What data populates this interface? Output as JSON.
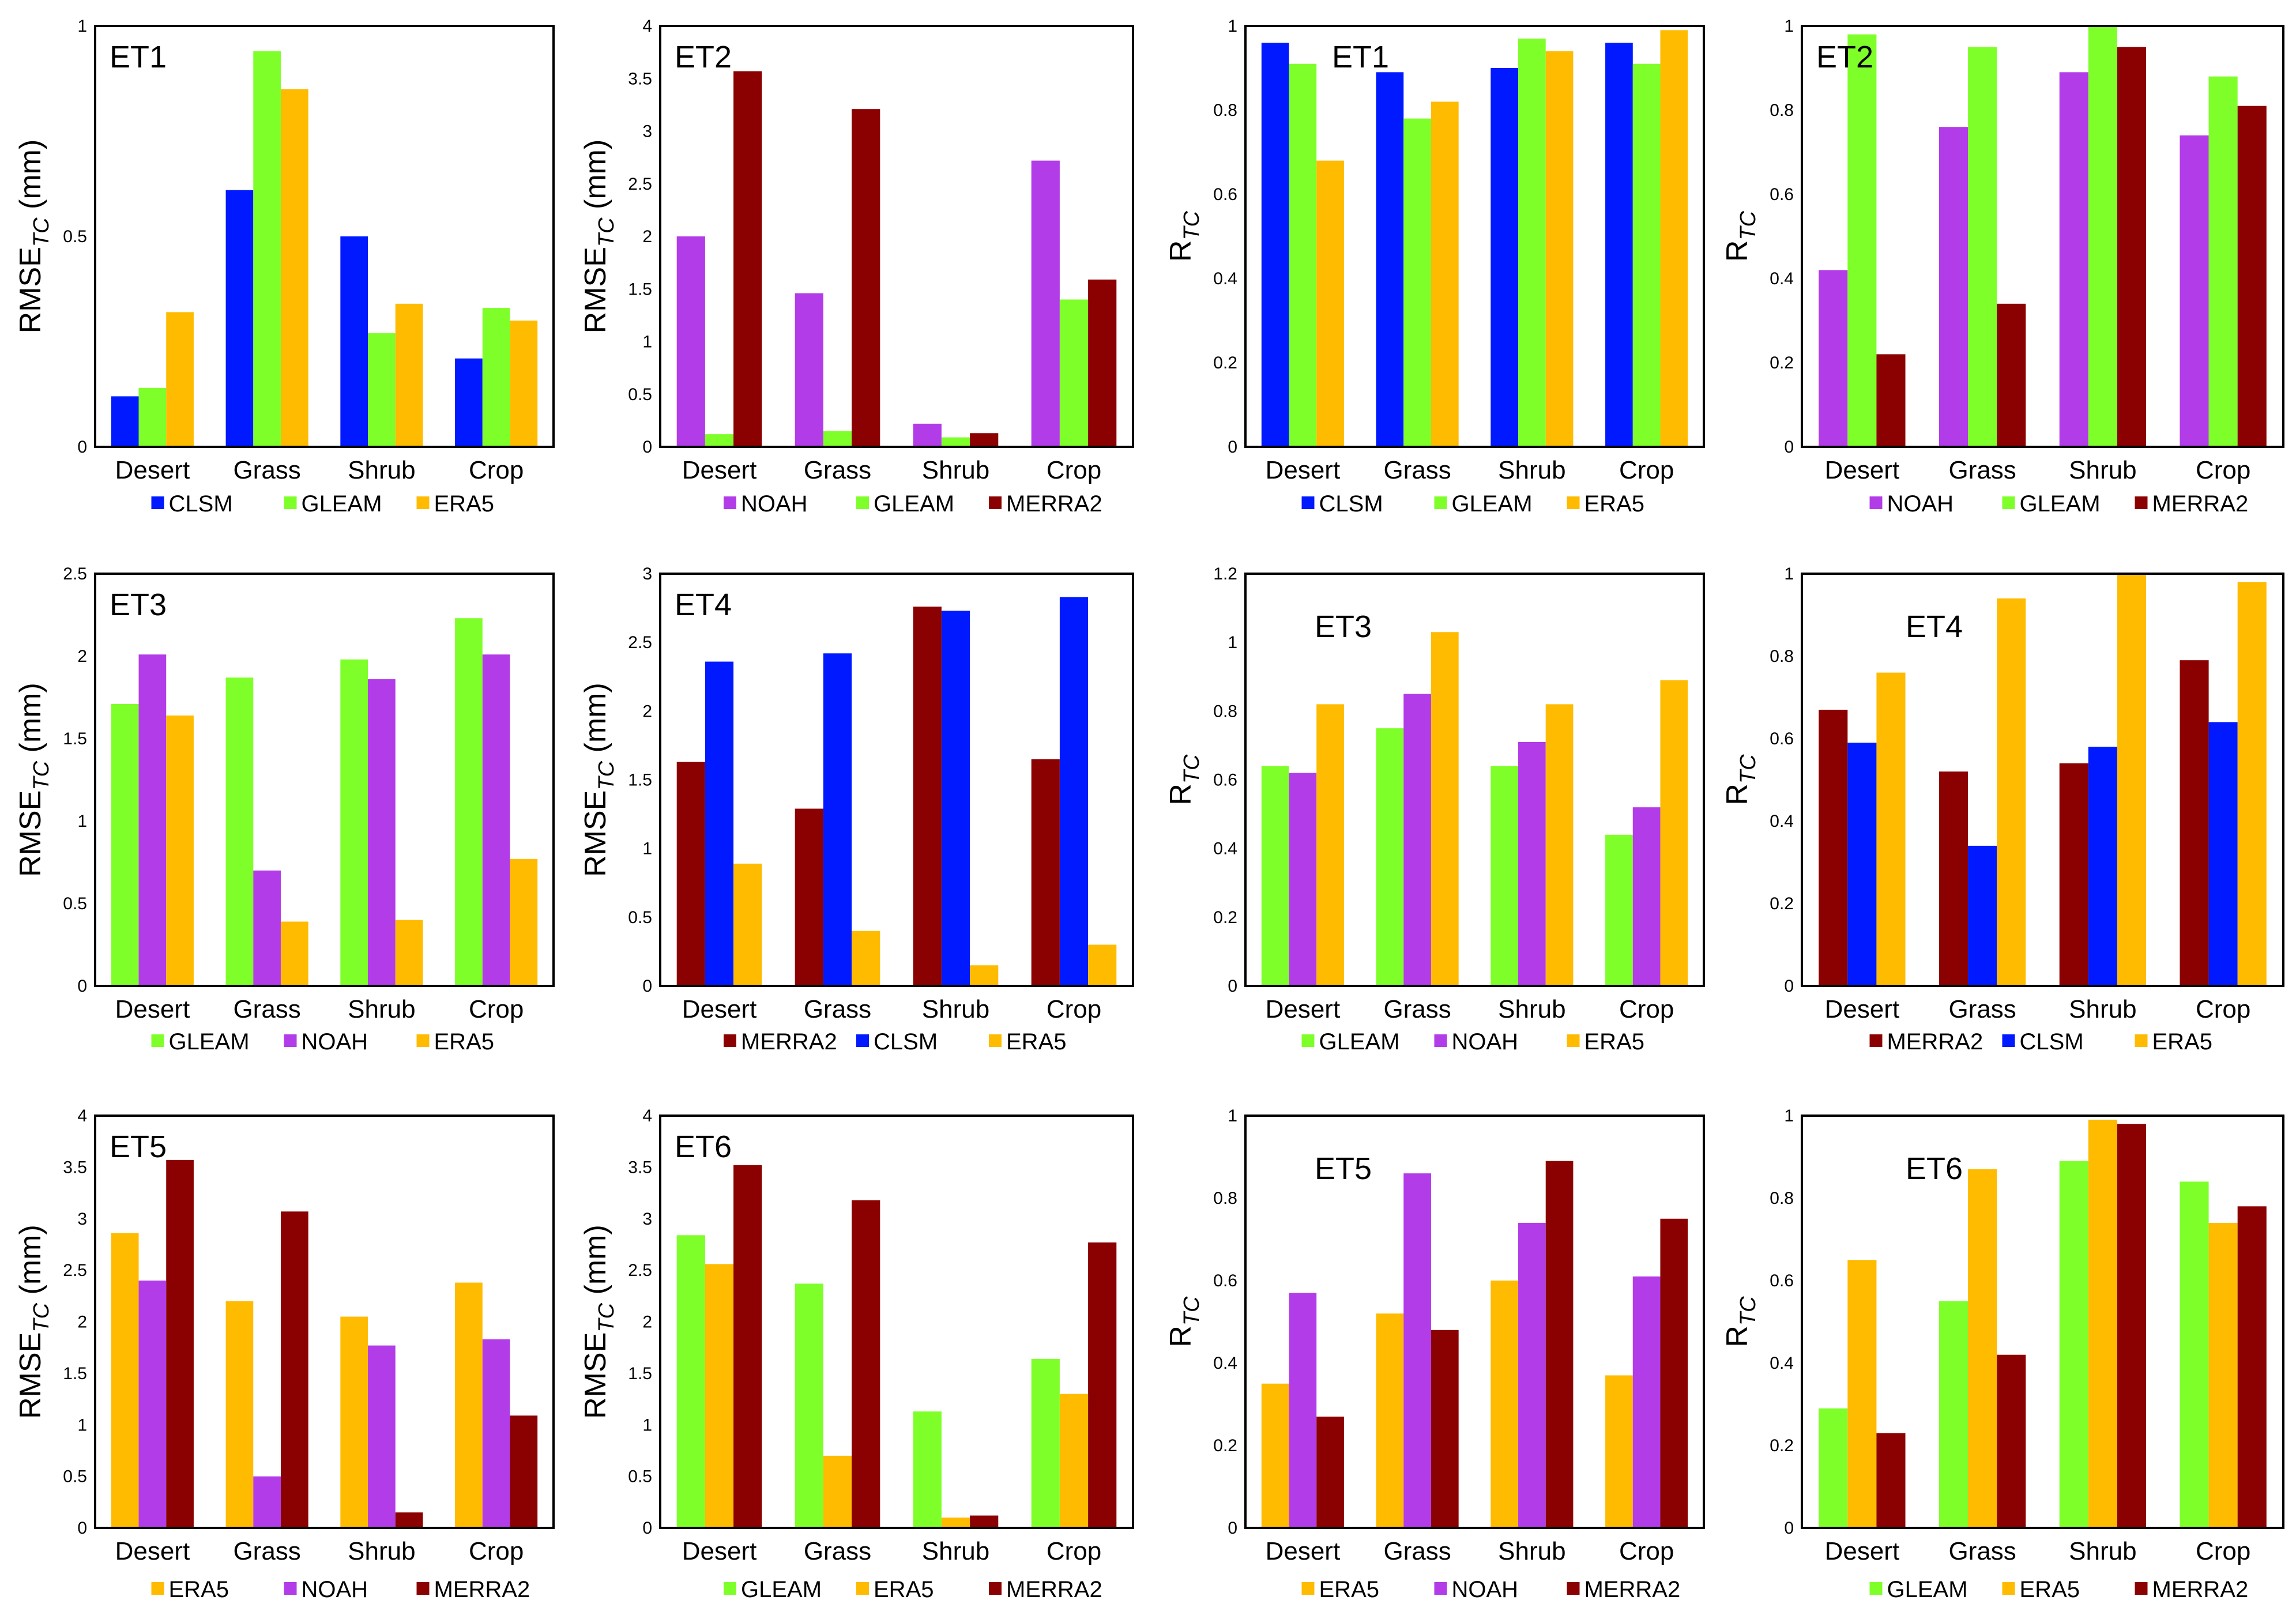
{
  "colors": {
    "CLSM": "#0019ff",
    "GLEAM": "#7fff2a",
    "ERA5": "#ffbb00",
    "NOAH": "#b23ce8",
    "MERRA2": "#8b0000"
  },
  "chart_data": [
    {
      "type": "bar",
      "title": "ET1",
      "ylabel": "RMSE",
      "ylabel_sub": "TC",
      "ylabel_unit": "(mm)",
      "ylim": [
        0,
        1
      ],
      "yticks": [
        "0",
        "0.5",
        "1"
      ],
      "categories": [
        "Desert",
        "Grass",
        "Shrub",
        "Crop"
      ],
      "series": [
        {
          "name": "CLSM",
          "values": [
            0.12,
            0.61,
            0.5,
            0.21
          ]
        },
        {
          "name": "GLEAM",
          "values": [
            0.14,
            0.94,
            0.27,
            0.33
          ]
        },
        {
          "name": "ERA5",
          "values": [
            0.32,
            0.85,
            0.34,
            0.3
          ]
        }
      ]
    },
    {
      "type": "bar",
      "title": "ET2",
      "ylabel": "RMSE",
      "ylabel_sub": "TC",
      "ylabel_unit": "(mm)",
      "ylim": [
        0,
        4
      ],
      "yticks": [
        "0",
        "0.5",
        "1",
        "1.5",
        "2",
        "2.5",
        "3",
        "3.5",
        "4"
      ],
      "categories": [
        "Desert",
        "Grass",
        "Shrub",
        "Crop"
      ],
      "series": [
        {
          "name": "NOAH",
          "values": [
            2.0,
            1.46,
            0.22,
            2.72
          ]
        },
        {
          "name": "GLEAM",
          "values": [
            0.12,
            0.15,
            0.09,
            1.4
          ]
        },
        {
          "name": "MERRA2",
          "values": [
            3.57,
            3.21,
            0.13,
            1.59
          ]
        }
      ]
    },
    {
      "type": "bar",
      "title": "ET1",
      "ylabel": "R",
      "ylabel_sub": "TC",
      "ylabel_unit": "",
      "ylim": [
        0,
        1
      ],
      "yticks": [
        "0",
        "0.2",
        "0.4",
        "0.6",
        "0.8",
        "1"
      ],
      "categories": [
        "Desert",
        "Grass",
        "Shrub",
        "Crop"
      ],
      "series": [
        {
          "name": "CLSM",
          "values": [
            0.96,
            0.89,
            0.9,
            0.96
          ]
        },
        {
          "name": "GLEAM",
          "values": [
            0.91,
            0.78,
            0.97,
            0.91
          ]
        },
        {
          "name": "ERA5",
          "values": [
            0.68,
            0.82,
            0.94,
            0.99
          ]
        }
      ]
    },
    {
      "type": "bar",
      "title": "ET2",
      "ylabel": "R",
      "ylabel_sub": "TC",
      "ylabel_unit": "",
      "ylim": [
        0,
        1
      ],
      "yticks": [
        "0",
        "0.2",
        "0.4",
        "0.6",
        "0.8",
        "1"
      ],
      "categories": [
        "Desert",
        "Grass",
        "Shrub",
        "Crop"
      ],
      "series": [
        {
          "name": "NOAH",
          "values": [
            0.42,
            0.76,
            0.89,
            0.74
          ]
        },
        {
          "name": "GLEAM",
          "values": [
            0.98,
            0.95,
            1.0,
            0.88
          ]
        },
        {
          "name": "MERRA2",
          "values": [
            0.22,
            0.34,
            0.95,
            0.81
          ]
        }
      ]
    },
    {
      "type": "bar",
      "title": "ET3",
      "ylabel": "RMSE",
      "ylabel_sub": "TC",
      "ylabel_unit": "(mm)",
      "ylim": [
        0,
        2.5
      ],
      "yticks": [
        "0",
        "0.5",
        "1",
        "1.5",
        "2",
        "2.5"
      ],
      "categories": [
        "Desert",
        "Grass",
        "Shrub",
        "Crop"
      ],
      "series": [
        {
          "name": "GLEAM",
          "values": [
            1.71,
            1.87,
            1.98,
            2.23
          ]
        },
        {
          "name": "NOAH",
          "values": [
            2.01,
            0.7,
            1.86,
            2.01
          ]
        },
        {
          "name": "ERA5",
          "values": [
            1.64,
            0.39,
            0.4,
            0.77
          ]
        }
      ]
    },
    {
      "type": "bar",
      "title": "ET4",
      "ylabel": "RMSE",
      "ylabel_sub": "TC",
      "ylabel_unit": "(mm)",
      "ylim": [
        0,
        3
      ],
      "yticks": [
        "0",
        "0.5",
        "1",
        "1.5",
        "2",
        "2.5",
        "3"
      ],
      "categories": [
        "Desert",
        "Grass",
        "Shrub",
        "Crop"
      ],
      "series": [
        {
          "name": "MERRA2",
          "values": [
            1.63,
            1.29,
            2.76,
            1.65
          ]
        },
        {
          "name": "CLSM",
          "values": [
            2.36,
            2.42,
            2.73,
            2.83
          ]
        },
        {
          "name": "ERA5",
          "values": [
            0.89,
            0.4,
            0.15,
            0.3
          ]
        }
      ]
    },
    {
      "type": "bar",
      "title": "ET3",
      "ylabel": "R",
      "ylabel_sub": "TC",
      "ylabel_unit": "",
      "ylim": [
        0,
        1.2
      ],
      "yticks": [
        "0",
        "0.2",
        "0.4",
        "0.6",
        "0.8",
        "1",
        "1.2"
      ],
      "categories": [
        "Desert",
        "Grass",
        "Shrub",
        "Crop"
      ],
      "series": [
        {
          "name": "GLEAM",
          "values": [
            0.64,
            0.75,
            0.64,
            0.44
          ]
        },
        {
          "name": "NOAH",
          "values": [
            0.62,
            0.85,
            0.71,
            0.52
          ]
        },
        {
          "name": "ERA5",
          "values": [
            0.82,
            1.03,
            0.82,
            0.89
          ]
        }
      ]
    },
    {
      "type": "bar",
      "title": "ET4",
      "ylabel": "R",
      "ylabel_sub": "TC",
      "ylabel_unit": "",
      "ylim": [
        0,
        1
      ],
      "yticks": [
        "0",
        "0.2",
        "0.4",
        "0.6",
        "0.8",
        "1"
      ],
      "categories": [
        "Desert",
        "Grass",
        "Shrub",
        "Crop"
      ],
      "series": [
        {
          "name": "MERRA2",
          "values": [
            0.67,
            0.52,
            0.54,
            0.79
          ]
        },
        {
          "name": "CLSM",
          "values": [
            0.59,
            0.34,
            0.58,
            0.64
          ]
        },
        {
          "name": "ERA5",
          "values": [
            0.76,
            0.94,
            1.0,
            0.98
          ]
        }
      ]
    },
    {
      "type": "bar",
      "title": "ET5",
      "ylabel": "RMSE",
      "ylabel_sub": "TC",
      "ylabel_unit": "(mm)",
      "ylim": [
        0,
        4
      ],
      "yticks": [
        "0",
        "0.5",
        "1",
        "1.5",
        "2",
        "2.5",
        "3",
        "3.5",
        "4"
      ],
      "categories": [
        "Desert",
        "Grass",
        "Shrub",
        "Crop"
      ],
      "series": [
        {
          "name": "ERA5",
          "values": [
            2.86,
            2.2,
            2.05,
            2.38
          ]
        },
        {
          "name": "NOAH",
          "values": [
            2.4,
            0.5,
            1.77,
            1.83
          ]
        },
        {
          "name": "MERRA2",
          "values": [
            3.57,
            3.07,
            0.15,
            1.09
          ]
        }
      ]
    },
    {
      "type": "bar",
      "title": "ET6",
      "ylabel": "RMSE",
      "ylabel_sub": "TC",
      "ylabel_unit": "(mm)",
      "ylim": [
        0,
        4
      ],
      "yticks": [
        "0",
        "0.5",
        "1",
        "1.5",
        "2",
        "2.5",
        "3",
        "3.5",
        "4"
      ],
      "categories": [
        "Desert",
        "Grass",
        "Shrub",
        "Crop"
      ],
      "series": [
        {
          "name": "GLEAM",
          "values": [
            2.84,
            2.37,
            1.13,
            1.64
          ]
        },
        {
          "name": "ERA5",
          "values": [
            2.56,
            0.7,
            0.1,
            1.3
          ]
        },
        {
          "name": "MERRA2",
          "values": [
            3.52,
            3.18,
            0.12,
            2.77
          ]
        }
      ]
    },
    {
      "type": "bar",
      "title": "ET5",
      "ylabel": "R",
      "ylabel_sub": "TC",
      "ylabel_unit": "",
      "ylim": [
        0,
        1
      ],
      "yticks": [
        "0",
        "0.2",
        "0.4",
        "0.6",
        "0.8",
        "1"
      ],
      "categories": [
        "Desert",
        "Grass",
        "Shrub",
        "Crop"
      ],
      "series": [
        {
          "name": "ERA5",
          "values": [
            0.35,
            0.52,
            0.6,
            0.37
          ]
        },
        {
          "name": "NOAH",
          "values": [
            0.57,
            0.86,
            0.74,
            0.61
          ]
        },
        {
          "name": "MERRA2",
          "values": [
            0.27,
            0.48,
            0.89,
            0.75
          ]
        }
      ]
    },
    {
      "type": "bar",
      "title": "ET6",
      "ylabel": "R",
      "ylabel_sub": "TC",
      "ylabel_unit": "",
      "ylim": [
        0,
        1
      ],
      "yticks": [
        "0",
        "0.2",
        "0.4",
        "0.6",
        "0.8",
        "1"
      ],
      "categories": [
        "Desert",
        "Grass",
        "Shrub",
        "Crop"
      ],
      "series": [
        {
          "name": "GLEAM",
          "values": [
            0.29,
            0.55,
            0.89,
            0.84
          ]
        },
        {
          "name": "ERA5",
          "values": [
            0.65,
            0.87,
            0.99,
            0.74
          ]
        },
        {
          "name": "MERRA2",
          "values": [
            0.23,
            0.42,
            0.98,
            0.78
          ]
        }
      ]
    }
  ]
}
